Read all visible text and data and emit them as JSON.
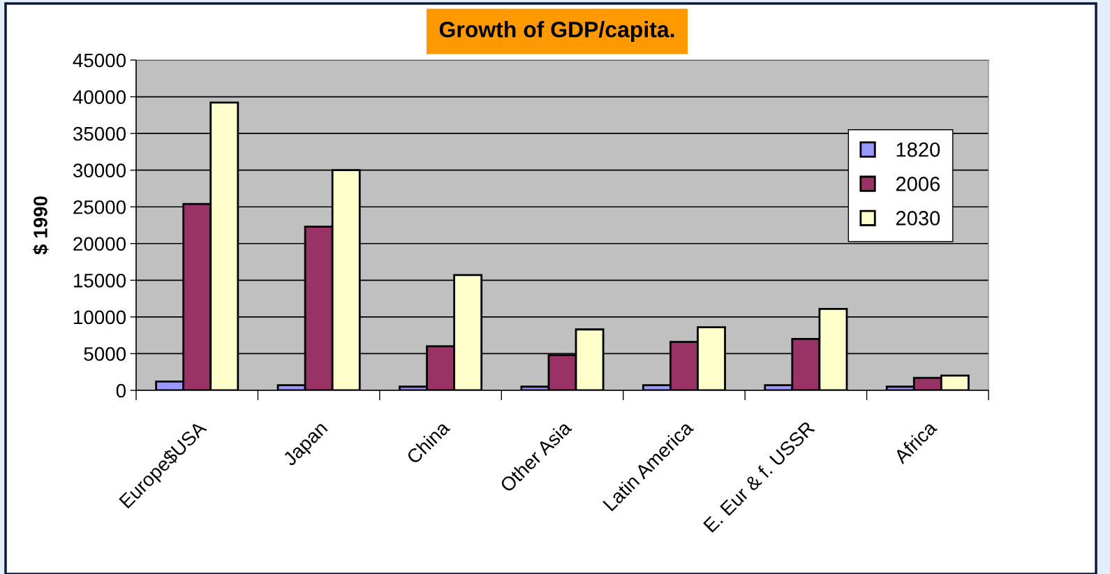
{
  "chart_data": {
    "type": "bar",
    "title": "Growth of GDP/capita.",
    "ylabel": "$ 1990",
    "categories": [
      "Europe$USA",
      "Japan",
      "China",
      "Other Asia",
      "Latin America",
      "E. Eur & f. USSR",
      "Africa"
    ],
    "series": [
      {
        "name": "1820",
        "color": "#9999ff",
        "values": [
          1200,
          700,
          500,
          500,
          700,
          700,
          500
        ]
      },
      {
        "name": "2006",
        "color": "#993366",
        "values": [
          25400,
          22300,
          6000,
          4800,
          6600,
          7000,
          1700
        ]
      },
      {
        "name": "2030",
        "color": "#ffffcc",
        "values": [
          39200,
          30000,
          15700,
          8300,
          8600,
          11100,
          2000
        ]
      }
    ],
    "ylim": [
      0,
      45000
    ],
    "yticks": [
      0,
      5000,
      10000,
      15000,
      20000,
      25000,
      30000,
      35000,
      40000,
      45000
    ],
    "grid": "y",
    "legend": "right"
  }
}
